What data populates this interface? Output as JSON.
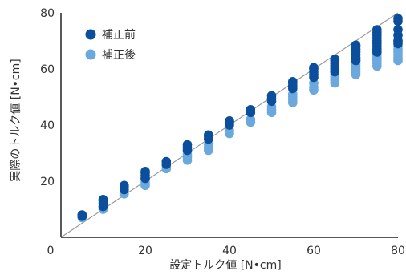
{
  "chart_data": {
    "type": "scatter",
    "xlabel": "設定トルク値 [N•cm]",
    "ylabel": "実際のトルク値 [N•cm]",
    "xlim": [
      0,
      80
    ],
    "ylim": [
      0,
      80
    ],
    "xticks": [
      "0",
      "20",
      "40",
      "60",
      "80"
    ],
    "yticks": [
      "20",
      "40",
      "60",
      "80"
    ],
    "grid": false,
    "legend_position": "top-left",
    "reference_line": [
      [
        0,
        0
      ],
      [
        80,
        80
      ]
    ],
    "series": [
      {
        "name": "補正前",
        "color": "#0b4f9c",
        "points": [
          [
            5,
            7.5
          ],
          [
            5,
            8
          ],
          [
            10,
            11
          ],
          [
            10,
            12
          ],
          [
            10,
            13
          ],
          [
            10,
            13.5
          ],
          [
            15,
            17
          ],
          [
            15,
            18
          ],
          [
            15,
            18.5
          ],
          [
            20,
            21
          ],
          [
            20,
            22
          ],
          [
            20,
            23
          ],
          [
            20,
            23.5
          ],
          [
            25,
            26
          ],
          [
            25,
            27
          ],
          [
            30,
            31
          ],
          [
            30,
            32
          ],
          [
            30,
            33
          ],
          [
            35,
            35
          ],
          [
            35,
            36
          ],
          [
            35,
            36.5
          ],
          [
            40,
            40
          ],
          [
            40,
            41
          ],
          [
            40,
            41.5
          ],
          [
            45,
            44.5
          ],
          [
            45,
            45.5
          ],
          [
            50,
            48.5
          ],
          [
            50,
            49.5
          ],
          [
            50,
            50.5
          ],
          [
            55,
            53
          ],
          [
            55,
            54
          ],
          [
            55,
            55
          ],
          [
            55,
            55.5
          ],
          [
            60,
            57
          ],
          [
            60,
            58
          ],
          [
            60,
            59
          ],
          [
            60,
            60
          ],
          [
            60,
            60.5
          ],
          [
            65,
            59
          ],
          [
            65,
            60
          ],
          [
            65,
            61
          ],
          [
            65,
            62
          ],
          [
            65,
            63
          ],
          [
            65,
            63.5
          ],
          [
            70,
            63
          ],
          [
            70,
            64
          ],
          [
            70,
            65
          ],
          [
            70,
            66
          ],
          [
            70,
            67
          ],
          [
            70,
            68
          ],
          [
            70,
            68.5
          ],
          [
            75,
            66
          ],
          [
            75,
            67
          ],
          [
            75,
            68
          ],
          [
            75,
            69
          ],
          [
            75,
            70
          ],
          [
            75,
            71
          ],
          [
            75,
            72
          ],
          [
            75,
            73
          ],
          [
            75,
            74
          ],
          [
            80,
            69
          ],
          [
            80,
            70
          ],
          [
            80,
            72
          ],
          [
            80,
            74
          ],
          [
            80,
            77
          ],
          [
            80,
            78
          ]
        ]
      },
      {
        "name": "補正後",
        "color": "#6aa8de",
        "points": [
          [
            5,
            7
          ],
          [
            5,
            7.5
          ],
          [
            10,
            10
          ],
          [
            10,
            11
          ],
          [
            15,
            15.5
          ],
          [
            15,
            16.5
          ],
          [
            20,
            18.5
          ],
          [
            20,
            19.5
          ],
          [
            20,
            20.5
          ],
          [
            20,
            21
          ],
          [
            25,
            24.5
          ],
          [
            25,
            25.5
          ],
          [
            30,
            27.5
          ],
          [
            30,
            28.5
          ],
          [
            30,
            29.5
          ],
          [
            35,
            31
          ],
          [
            35,
            32
          ],
          [
            35,
            33
          ],
          [
            40,
            37
          ],
          [
            40,
            38
          ],
          [
            45,
            41
          ],
          [
            45,
            42
          ],
          [
            50,
            44.5
          ],
          [
            50,
            45.5
          ],
          [
            50,
            46.5
          ],
          [
            55,
            48
          ],
          [
            55,
            49
          ],
          [
            55,
            50
          ],
          [
            55,
            51
          ],
          [
            60,
            52.5
          ],
          [
            60,
            53.5
          ],
          [
            60,
            55
          ],
          [
            65,
            55
          ],
          [
            65,
            56
          ],
          [
            65,
            57
          ],
          [
            65,
            58
          ],
          [
            70,
            58
          ],
          [
            70,
            59
          ],
          [
            70,
            60
          ],
          [
            70,
            61
          ],
          [
            70,
            62
          ],
          [
            70,
            63
          ],
          [
            75,
            61
          ],
          [
            75,
            62
          ],
          [
            75,
            63
          ],
          [
            75,
            64
          ],
          [
            75,
            65
          ],
          [
            75,
            66
          ],
          [
            80,
            63
          ],
          [
            80,
            64
          ],
          [
            80,
            65
          ],
          [
            80,
            66
          ],
          [
            80,
            67
          ],
          [
            80,
            68
          ],
          [
            80,
            70
          ]
        ]
      }
    ]
  }
}
